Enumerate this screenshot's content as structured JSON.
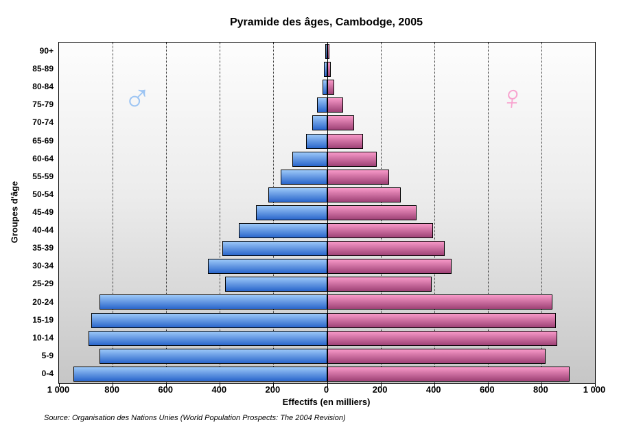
{
  "title": "Pyramide des âges, Cambodge, 2005",
  "source": "Source: Organisation des Nations Unies (World Population Prospects: The 2004 Revision)",
  "symbols": {
    "male": "♂",
    "female": "♀"
  },
  "colors": {
    "male_bar_light": "#9cc8f8",
    "male_bar_dark": "#2a66cb",
    "female_bar_light": "#f899c8",
    "female_bar_dark": "#9e4276",
    "male_symbol": "#9dc5f3",
    "female_symbol": "#f8a3cf",
    "bar_border": "#000000",
    "plot_bg_top": "#fdfdfd",
    "plot_bg_bottom": "#c6c6c6"
  },
  "chart_data": {
    "type": "bar",
    "subtype": "population_pyramid",
    "title": "Pyramide des âges, Cambodge, 2005",
    "xlabel": "Effectifs (en milliers)",
    "ylabel": "Groupes d'âge",
    "unit": "thousands",
    "xlim_each_side": [
      0,
      1000
    ],
    "x_tick_step": 200,
    "x_tick_labels": [
      "1 000",
      "800",
      "600",
      "400",
      "200",
      "0",
      "200",
      "400",
      "600",
      "800",
      "1 000"
    ],
    "grid": "vertical dotted gridlines every 200, solid line at 0",
    "legend_position": "gender symbols inside plot, upper left (male) and upper right (female)",
    "categories_top_to_bottom": [
      "90+",
      "85-89",
      "80-84",
      "75-79",
      "70-74",
      "65-69",
      "60-64",
      "55-59",
      "50-54",
      "45-49",
      "40-44",
      "35-39",
      "30-34",
      "25-29",
      "20-24",
      "15-19",
      "10-14",
      "5-9",
      "0-4"
    ],
    "series": [
      {
        "name": "male",
        "side": "left",
        "values": [
          2,
          6,
          12,
          31,
          49,
          74,
          125,
          167,
          213,
          260,
          325,
          385,
          440,
          375,
          845,
          875,
          885,
          845,
          940
        ]
      },
      {
        "name": "female",
        "side": "right",
        "values": [
          3,
          9,
          23,
          56,
          97,
          130,
          180,
          226,
          270,
          330,
          390,
          435,
          460,
          385,
          835,
          850,
          855,
          810,
          900
        ]
      }
    ]
  }
}
